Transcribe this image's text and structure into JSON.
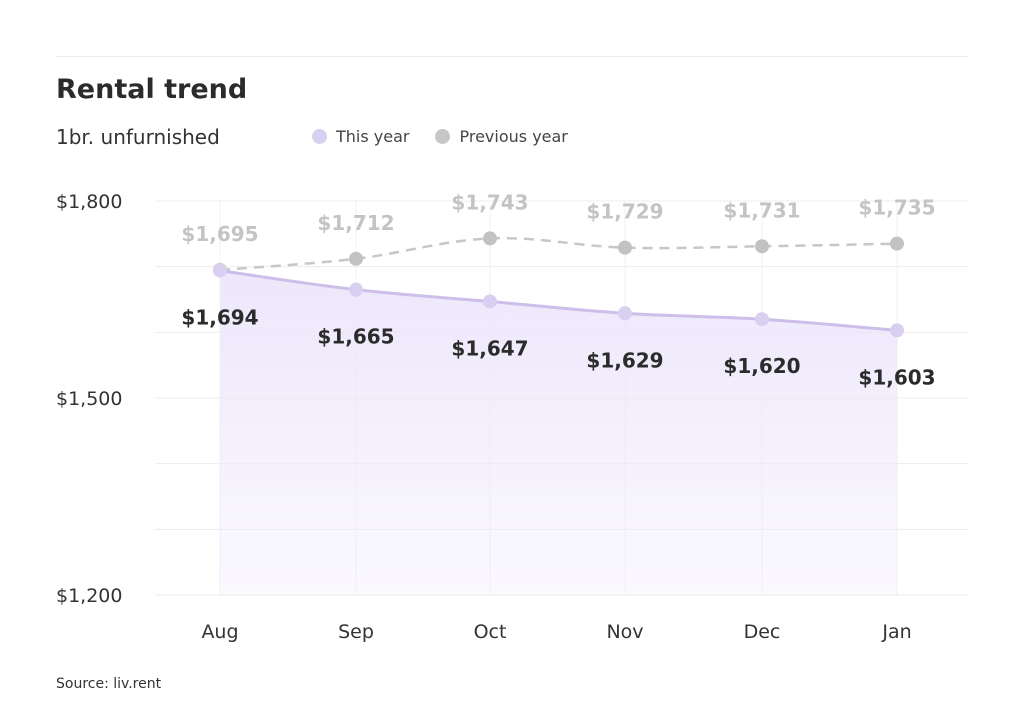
{
  "header": {
    "title": "Rental trend",
    "subtitle": "1br. unfurnished"
  },
  "legend": {
    "this_year": "This year",
    "previous_year": "Previous year"
  },
  "source": "Source: liv.rent",
  "colors": {
    "this_year": "#d9cff0",
    "this_year_line": "#cdbfea",
    "area_fill": "#ede7fb",
    "previous_year": "#c7c7c7",
    "previous_year_label": "#c4c4c4",
    "grid": "#ececec"
  },
  "chart_data": {
    "type": "area",
    "title": "Rental trend",
    "subtitle": "1br. unfurnished",
    "categories": [
      "Aug",
      "Sep",
      "Oct",
      "Nov",
      "Dec",
      "Jan"
    ],
    "series": [
      {
        "name": "This year",
        "values": [
          1694,
          1665,
          1647,
          1629,
          1620,
          1603
        ],
        "labels": [
          "$1,694",
          "$1,665",
          "$1,647",
          "$1,629",
          "$1,620",
          "$1,603"
        ],
        "style": "solid-area"
      },
      {
        "name": "Previous year",
        "values": [
          1695,
          1712,
          1743,
          1729,
          1731,
          1735
        ],
        "labels": [
          "$1,695",
          "$1,712",
          "$1,743",
          "$1,729",
          "$1,731",
          "$1,735"
        ],
        "style": "dashed-line"
      }
    ],
    "ylim": [
      1200,
      1800
    ],
    "yticks": [
      1200,
      1500,
      1800
    ],
    "ytick_labels": [
      "$1,200",
      "$1,500",
      "$1,800"
    ],
    "grid": true,
    "legend_position": "top"
  }
}
